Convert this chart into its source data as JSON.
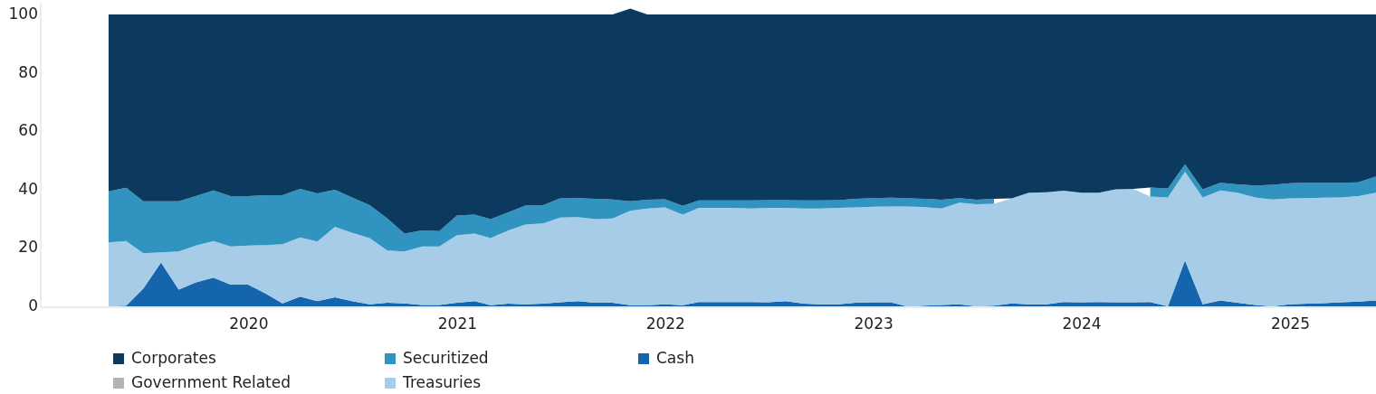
{
  "chart_data": {
    "type": "area",
    "stacked": true,
    "legend": "bottom",
    "x": [
      "2019-04-30",
      "2019-05-31",
      "2019-06-30",
      "2019-07-31",
      "2019-08-31",
      "2019-09-30",
      "2019-10-31",
      "2019-11-30",
      "2019-12-31",
      "2020-01-31",
      "2020-02-29",
      "2020-03-31",
      "2020-04-30",
      "2020-05-31",
      "2020-06-30",
      "2020-07-31",
      "2020-08-31",
      "2020-09-30",
      "2020-10-31",
      "2020-11-30",
      "2020-12-31",
      "2021-01-31",
      "2021-02-28",
      "2021-03-31",
      "2021-04-30",
      "2021-05-31",
      "2021-06-30",
      "2021-07-31",
      "2021-08-31",
      "2021-09-30",
      "2021-10-31",
      "2021-11-30",
      "2021-12-31",
      "2022-01-31",
      "2022-02-28",
      "2022-03-31",
      "2022-04-30",
      "2022-05-31",
      "2022-06-30",
      "2022-07-31",
      "2022-08-31",
      "2022-09-30",
      "2022-10-31",
      "2022-11-30",
      "2022-12-31",
      "2023-01-31",
      "2023-02-28",
      "2023-03-31",
      "2023-04-30",
      "2023-05-31",
      "2023-06-30",
      "2023-07-31",
      "2023-08-31",
      "2023-09-30",
      "2023-10-31",
      "2023-11-30",
      "2023-12-31",
      "2024-01-31",
      "2024-02-29",
      "2024-03-31",
      "2024-04-30",
      "2024-05-31",
      "2024-06-30",
      "2024-07-31",
      "2024-08-31",
      "2024-09-30",
      "2024-10-31",
      "2024-11-30",
      "2024-12-31",
      "2025-01-31",
      "2025-02-28",
      "2025-03-31",
      "2025-04-30",
      "2025-05-31"
    ],
    "xlim": [
      "2019-01-01",
      "2025-05-31"
    ],
    "xticks": [
      "2020",
      "2021",
      "2022",
      "2023",
      "2024",
      "2025"
    ],
    "ylim": [
      0,
      104
    ],
    "yticks": [
      0,
      20,
      40,
      60,
      80,
      100
    ],
    "series": [
      {
        "name": "Cash",
        "color": "#1565ad",
        "values": [
          0,
          0.2,
          6.1,
          15,
          5.7,
          8.2,
          9.8,
          7.4,
          7.4,
          4.3,
          1,
          3.3,
          1.8,
          3.1,
          1.8,
          0.7,
          1.2,
          1,
          0.5,
          0.5,
          1.2,
          1.8,
          0.4,
          0.9,
          0.7,
          0.9,
          1.4,
          1.8,
          1.2,
          1.2,
          0.4,
          0.4,
          0.7,
          0.4,
          1.5,
          1.5,
          1.5,
          1.5,
          1.4,
          1.8,
          0.9,
          0.7,
          0.7,
          1.2,
          1.4,
          1.4,
          0,
          0.2,
          0.5,
          0.7,
          0,
          0.2,
          1,
          0.7,
          0.7,
          1.5,
          1.4,
          1.5,
          1.4,
          1.4,
          1.5,
          0,
          15.7,
          0.7,
          2,
          1.2,
          0.5,
          0,
          0.7,
          0.9,
          1.1,
          1.4,
          1.6,
          2
        ]
      },
      {
        "name": "Treasuries",
        "color": "#a6cce8",
        "values": [
          21.9,
          22.2,
          12.1,
          3.5,
          13.1,
          12.6,
          12.6,
          13.1,
          13.4,
          16.7,
          20.3,
          20.3,
          20.4,
          24.1,
          23.4,
          22.7,
          17.9,
          17.8,
          20,
          20,
          23.2,
          23.1,
          23,
          25.1,
          27.3,
          27.5,
          29,
          28.8,
          28.7,
          28.9,
          32.3,
          33.1,
          33.2,
          31,
          32.2,
          32.2,
          32.2,
          32,
          32.3,
          31.9,
          32.6,
          32.8,
          33,
          32.7,
          32.7,
          32.8,
          34.2,
          33.8,
          33,
          34.8,
          35,
          34.9,
          36,
          38.2,
          38.4,
          38.1,
          37.5,
          37.4,
          38.7,
          38.8,
          36.1,
          37.3,
          30.4,
          36.6,
          37.7,
          37.7,
          36.8,
          36.6,
          36.3,
          36.2,
          36.1,
          35.9,
          36.2,
          36.9
        ]
      },
      {
        "name": "Securitized",
        "color": "#3193bf",
        "values": [
          17.5,
          18.2,
          17.8,
          17.5,
          17.2,
          17,
          17.3,
          17.3,
          17,
          17.1,
          16.8,
          16.6,
          16.5,
          12.7,
          12.1,
          11.3,
          11,
          6.1,
          5.5,
          5.3,
          6.7,
          6.5,
          6.5,
          6.2,
          6.5,
          6.3,
          6.6,
          6.5,
          6.9,
          6.5,
          3.3,
          3,
          2.8,
          3,
          2.6,
          2.6,
          2.6,
          2.8,
          2.7,
          2.7,
          2.8,
          2.8,
          2.7,
          2.9,
          3,
          3,
          2.9,
          2.8,
          3,
          1.6,
          1.5,
          1.7,
          null,
          null,
          null,
          null,
          null,
          null,
          null,
          null,
          3.1,
          3.1,
          2.6,
          2.8,
          2.6,
          2.9,
          4.1,
          5,
          5.2,
          5.2,
          5.1,
          5,
          4.7,
          5.6
        ]
      },
      {
        "name": "Government Related",
        "color": "#b3b3b3",
        "values": [
          null,
          null,
          null,
          null,
          null,
          null,
          null,
          null,
          null,
          null,
          null,
          null,
          null,
          null,
          null,
          null,
          null,
          null,
          null,
          null,
          null,
          null,
          null,
          null,
          null,
          null,
          null,
          null,
          null,
          null,
          null,
          null,
          null,
          null,
          null,
          null,
          null,
          null,
          null,
          null,
          null,
          null,
          null,
          null,
          null,
          null,
          null,
          null,
          null,
          null,
          null,
          null,
          null,
          null,
          null,
          null,
          null,
          null,
          null,
          null,
          null,
          null,
          null,
          null,
          null,
          null,
          null,
          null,
          null,
          null,
          null,
          null,
          null,
          null
        ]
      },
      {
        "name": "Corporates",
        "color": "#0b3a5e",
        "values": [
          60.6,
          59.4,
          64,
          64,
          64,
          62.2,
          60.3,
          62.2,
          62.2,
          61.9,
          61.9,
          59.8,
          61.3,
          60.1,
          62.7,
          65.3,
          69.9,
          75.1,
          74,
          74.2,
          68.9,
          68.6,
          70.1,
          67.8,
          65.5,
          65.3,
          63,
          62.9,
          63.2,
          63.4,
          66,
          63.5,
          63.3,
          65.6,
          63.7,
          63.7,
          63.7,
          63.7,
          63.6,
          63.6,
          63.7,
          63.7,
          63.6,
          63.2,
          62.9,
          62.8,
          62.9,
          63.2,
          63.5,
          62.9,
          63.5,
          63.2,
          63,
          61.1,
          60.9,
          60.4,
          61.1,
          61.1,
          59.9,
          59.8,
          59.3,
          59.6,
          51.3,
          59.9,
          57.7,
          58.2,
          58.6,
          58.4,
          57.8,
          57.7,
          57.7,
          57.7,
          57.5,
          55.5
        ]
      }
    ]
  }
}
